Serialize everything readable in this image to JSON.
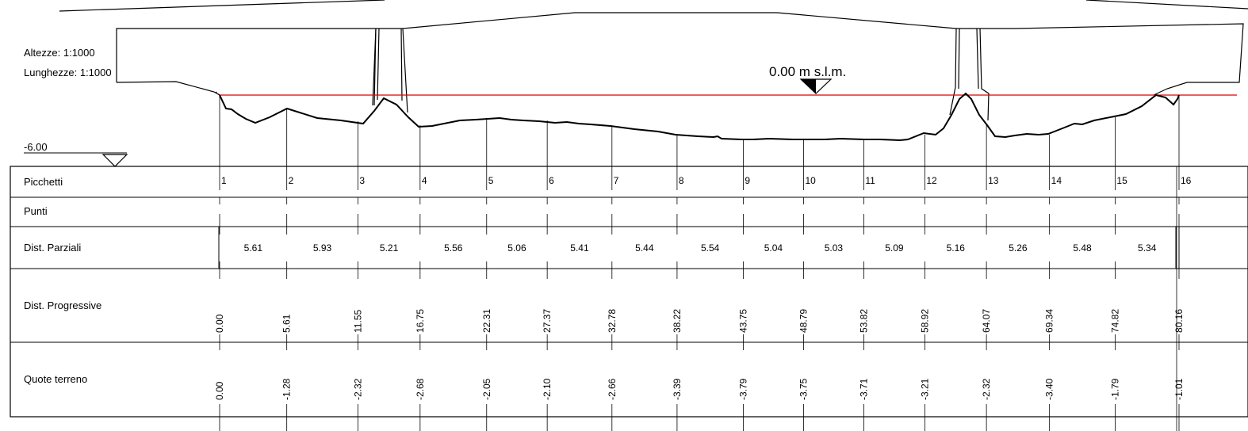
{
  "scale": {
    "heights": "Altezze:  1:1000",
    "lengths": "Lunghezze: 1:1000"
  },
  "reference": {
    "sea_level_label": "0.00 m s.l.m.",
    "datum_label": "-6.00"
  },
  "rows": {
    "picchetti": "Picchetti",
    "punti": "Punti",
    "dist_parziali": "Dist. Parziali",
    "dist_progressive": "Dist. Progressive",
    "quote_terreno": "Quote terreno"
  },
  "stations": [
    {
      "id": "1",
      "progressive": "0.00",
      "quota": "0.00"
    },
    {
      "id": "2",
      "progressive": "5.61",
      "quota": "-1.28"
    },
    {
      "id": "3",
      "progressive": "11.55",
      "quota": "-2.32"
    },
    {
      "id": "4",
      "progressive": "16.75",
      "quota": "-2.68"
    },
    {
      "id": "5",
      "progressive": "22.31",
      "quota": "-2.05"
    },
    {
      "id": "6",
      "progressive": "27.37",
      "quota": "-2.10"
    },
    {
      "id": "7",
      "progressive": "32.78",
      "quota": "-2.66"
    },
    {
      "id": "8",
      "progressive": "38.22",
      "quota": "-3.39"
    },
    {
      "id": "9",
      "progressive": "43.75",
      "quota": "-3.79"
    },
    {
      "id": "10",
      "progressive": "48.79",
      "quota": "-3.75"
    },
    {
      "id": "11",
      "progressive": "53.82",
      "quota": "-3.71"
    },
    {
      "id": "12",
      "progressive": "58.92",
      "quota": "-3.21"
    },
    {
      "id": "13",
      "progressive": "64.07",
      "quota": "-2.32"
    },
    {
      "id": "14",
      "progressive": "69.34",
      "quota": "-3.40"
    },
    {
      "id": "15",
      "progressive": "74.82",
      "quota": "-1.79"
    },
    {
      "id": "16",
      "progressive": "80.16",
      "quota": "-1.01"
    }
  ],
  "partials": [
    "5.61",
    "5.93",
    "5.21",
    "5.56",
    "5.06",
    "5.41",
    "5.44",
    "5.54",
    "5.04",
    "5.03",
    "5.09",
    "5.16",
    "5.26",
    "5.48",
    "5.34"
  ],
  "colors": {
    "sea_level_line": "#e00000",
    "linework": "#000000"
  }
}
